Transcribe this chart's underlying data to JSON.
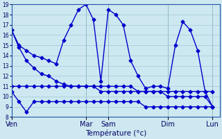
{
  "background_color": "#cde8f0",
  "grid_color": "#a0c8d8",
  "line_color": "#0000cc",
  "xlabel": "Température (°c)",
  "ylim": [
    8,
    19
  ],
  "yticks": [
    8,
    9,
    10,
    11,
    12,
    13,
    14,
    15,
    16,
    17,
    18,
    19
  ],
  "day_labels": [
    "Ven",
    "Mar",
    "Sam",
    "Dim",
    "Lun"
  ],
  "day_x": [
    0,
    10,
    13,
    21,
    27
  ],
  "xlim": [
    0,
    28
  ],
  "line1_x": [
    0,
    1,
    2,
    3,
    4,
    5,
    6,
    7,
    8,
    9,
    10,
    11,
    12,
    13,
    14,
    15,
    16,
    17,
    18,
    19,
    20,
    21,
    22,
    23,
    24,
    25,
    26,
    27
  ],
  "line1_y": [
    16.5,
    15.0,
    14.5,
    14.0,
    13.8,
    13.5,
    13.2,
    15.5,
    17.0,
    18.5,
    19.0,
    17.5,
    11.5,
    18.5,
    18.0,
    17.0,
    13.5,
    12.0,
    10.8,
    11.0,
    11.0,
    10.8,
    15.0,
    17.3,
    16.5,
    14.5,
    10.5,
    10.5
  ],
  "line2_x": [
    0,
    1,
    2,
    3,
    4,
    5,
    6,
    7,
    8,
    9,
    10,
    11,
    12,
    13,
    14,
    15,
    16,
    17,
    18,
    19,
    20,
    21,
    22,
    23,
    24,
    25,
    26,
    27
  ],
  "line2_y": [
    11.0,
    11.0,
    11.0,
    11.0,
    11.0,
    11.0,
    11.0,
    11.0,
    11.0,
    11.0,
    11.0,
    11.0,
    11.0,
    11.0,
    11.0,
    11.0,
    11.0,
    10.5,
    10.5,
    10.5,
    10.5,
    10.5,
    10.5,
    10.5,
    10.5,
    10.5,
    10.5,
    9.0
  ],
  "line3_x": [
    0,
    1,
    2,
    3,
    4,
    5,
    6,
    7,
    8,
    9,
    10,
    11,
    12,
    13,
    14,
    15,
    16,
    17,
    18,
    19,
    20,
    21,
    22,
    23,
    24,
    25,
    26,
    27
  ],
  "line3_y": [
    10.5,
    9.5,
    8.5,
    9.5,
    9.5,
    9.5,
    9.5,
    9.5,
    9.5,
    9.5,
    9.5,
    9.5,
    9.5,
    9.5,
    9.5,
    9.5,
    9.5,
    9.5,
    9.0,
    9.0,
    9.0,
    9.0,
    9.0,
    9.0,
    9.0,
    9.0,
    9.0,
    9.0
  ],
  "line4_x": [
    0,
    1,
    2,
    3,
    4,
    5,
    6,
    7,
    8,
    9,
    10,
    11,
    12,
    13,
    14,
    15,
    16,
    17,
    18,
    19,
    20,
    21,
    22,
    23,
    24,
    25,
    26,
    27
  ],
  "line4_y": [
    16.5,
    14.8,
    13.5,
    12.8,
    12.2,
    12.0,
    11.5,
    11.2,
    11.0,
    11.0,
    11.0,
    11.0,
    10.5,
    10.5,
    10.5,
    10.5,
    10.5,
    10.5,
    10.5,
    10.5,
    10.5,
    10.0,
    10.0,
    10.0,
    10.0,
    10.0,
    10.0,
    9.0
  ]
}
